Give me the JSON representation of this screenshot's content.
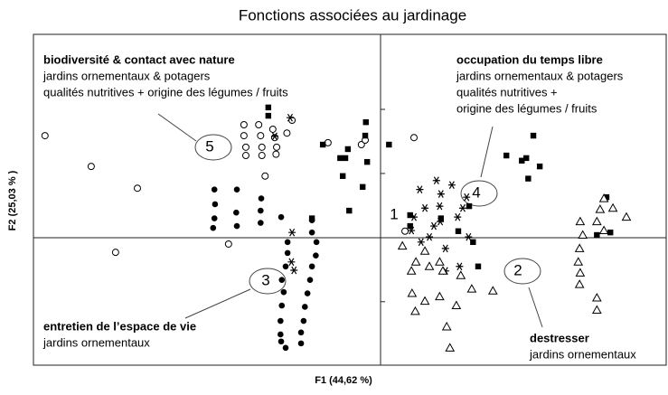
{
  "chart_data": {
    "type": "scatter",
    "title": "Fonctions associées au jardinage",
    "xlabel": "F1 (44,62 %)",
    "ylabel": "F2 (25,03 % )",
    "xlim": [
      -5.41,
      4.45
    ],
    "ylim": [
      -1.99,
      3.17
    ],
    "yticks": [
      -1,
      1,
      2
    ],
    "series": [
      {
        "marker": "circle-open",
        "color": "#000000",
        "x": [
          -5.23,
          -4.51,
          -3.79,
          -4.13,
          -2.37,
          -2.13,
          -1.9,
          -1.68,
          -2.13,
          -1.87,
          -1.65,
          -2.1,
          -1.85,
          -1.62,
          -2.1,
          -1.85,
          -1.63,
          -1.38,
          -1.46,
          -1.8,
          -0.82,
          -0.3,
          -0.24,
          0.52,
          0.38
        ],
        "y": [
          1.59,
          1.11,
          0.77,
          -0.23,
          -0.1,
          1.76,
          1.76,
          1.69,
          1.59,
          1.59,
          1.56,
          1.41,
          1.41,
          1.41,
          1.28,
          1.28,
          1.3,
          1.83,
          1.63,
          0.96,
          1.48,
          1.45,
          1.52,
          1.56,
          0.1
        ]
      },
      {
        "marker": "square",
        "color": "#000000",
        "x": [
          -1.75,
          -1.75,
          -0.23,
          -0.24,
          -0.51,
          -0.55,
          -0.63,
          0.13,
          -0.59,
          -0.28,
          -0.21,
          -1.07,
          -0.49,
          0.46,
          0.46,
          0.94,
          1.21,
          1.38,
          1.44,
          1.52,
          1.96,
          2.2,
          2.38,
          2.27,
          2.48,
          2.3,
          3.37,
          3.52,
          3.58,
          -0.9
        ],
        "y": [
          2.03,
          1.9,
          1.8,
          1.59,
          1.38,
          1.24,
          1.24,
          1.45,
          0.96,
          0.79,
          1.18,
          0.3,
          0.42,
          0.35,
          0.18,
          0.3,
          0.1,
          0.49,
          -0.07,
          -0.45,
          1.28,
          1.2,
          1.59,
          1.24,
          1.11,
          0.92,
          0.04,
          0.63,
          0.08,
          1.45
        ]
      },
      {
        "marker": "circle-filled",
        "color": "#000000",
        "x": [
          -2.59,
          -2.58,
          -2.59,
          -2.61,
          -2.25,
          -2.24,
          -2.24,
          -1.86,
          -1.87,
          -1.87,
          -1.55,
          -1.45,
          -1.45,
          -1.48,
          -1.54,
          -1.51,
          -1.54,
          -1.56,
          -1.56,
          -1.55,
          -1.48,
          -1.07,
          -1.07,
          -1.0,
          -1.01,
          -1.07,
          -1.1,
          -1.14,
          -1.18,
          -1.2,
          -1.24,
          -1.24
        ],
        "y": [
          0.75,
          0.52,
          0.3,
          0.15,
          0.39,
          0.18,
          0.75,
          0.61,
          0.42,
          0.23,
          0.32,
          -0.07,
          -0.24,
          -0.45,
          -0.66,
          -0.85,
          -1.06,
          -1.3,
          -1.51,
          -1.62,
          -1.72,
          0.27,
          0.08,
          -0.07,
          -0.28,
          -0.45,
          -0.66,
          -0.87,
          -1.08,
          -1.3,
          -1.48,
          -1.65
        ]
      },
      {
        "marker": "star",
        "color": "#000000",
        "x": [
          -1.41,
          -1.65,
          -1.38,
          -1.39,
          -1.35,
          0.61,
          0.69,
          0.87,
          0.94,
          0.92,
          0.93,
          0.83,
          0.52,
          0.48,
          0.63,
          0.76,
          1.01,
          1.11,
          1.23,
          1.01,
          1.2,
          1.28,
          1.37,
          1.34
        ],
        "y": [
          1.87,
          1.58,
          0.08,
          -0.38,
          -0.51,
          0.75,
          0.46,
          0.89,
          0.68,
          0.49,
          0.25,
          0.18,
          0.32,
          0.11,
          -0.07,
          0.01,
          -0.17,
          0.82,
          -0.45,
          -0.52,
          0.32,
          0.46,
          0.01,
          0.63
        ]
      },
      {
        "marker": "triangle",
        "color": "#000000",
        "x": [
          0.34,
          0.48,
          0.55,
          0.69,
          0.92,
          0.97,
          1.25,
          1.42,
          0.92,
          0.49,
          0.69,
          0.54,
          1.03,
          1.08,
          1.75,
          1.18,
          3.11,
          3.15,
          3.1,
          3.08,
          3.11,
          3.1,
          3.37,
          3.42,
          3.48,
          3.62,
          3.83,
          3.48,
          3.37,
          3.37,
          0.76
        ],
        "y": [
          -0.13,
          -0.52,
          -0.38,
          -0.21,
          -0.38,
          -0.52,
          -0.59,
          -0.8,
          -0.92,
          -0.87,
          -0.99,
          -1.15,
          -1.39,
          -1.72,
          -0.83,
          -1.06,
          0.25,
          0.04,
          -0.17,
          -0.38,
          -0.55,
          -0.73,
          0.25,
          0.44,
          0.61,
          0.46,
          0.32,
          0.11,
          -0.94,
          -1.13,
          -0.45
        ]
      }
    ],
    "groups": [
      "1",
      "2",
      "3",
      "4",
      "5"
    ],
    "annotations": [
      {
        "heading": "biodiversité & contact avec nature",
        "lines": [
          "jardins ornementaux & potagers",
          "qualités nutritives + origine des légumes / fruits"
        ]
      },
      {
        "heading": "occupation du temps libre",
        "lines": [
          "jardins ornementaux & potagers",
          "qualités nutritives +",
          "origine des légumes / fruits"
        ]
      },
      {
        "heading": "entretien de l’espace de vie",
        "lines": [
          "jardins ornementaux"
        ]
      },
      {
        "heading": "destresser",
        "lines": [
          "jardins ornementaux"
        ]
      }
    ]
  }
}
